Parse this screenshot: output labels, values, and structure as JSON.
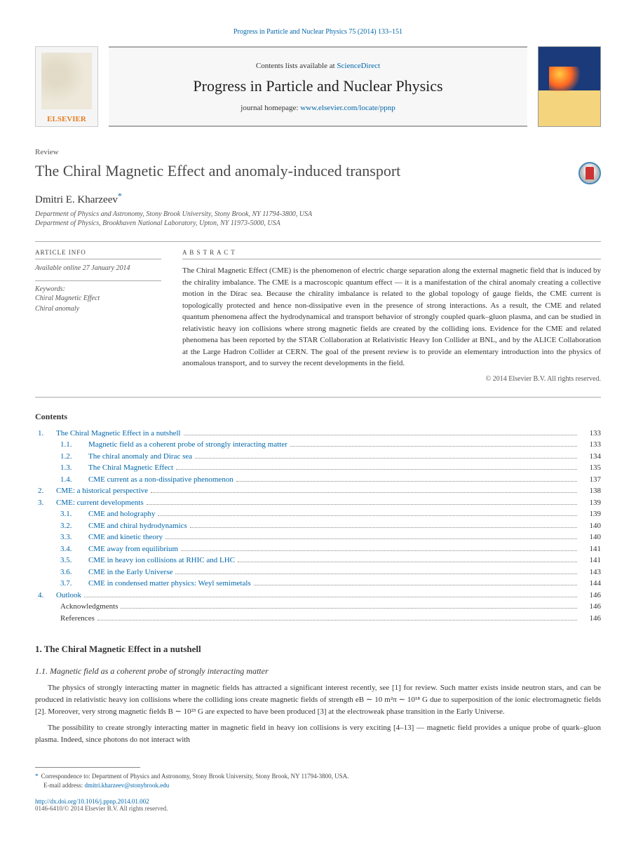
{
  "colors": {
    "link": "#0066aa",
    "text": "#333333",
    "muted": "#555555",
    "rule": "#aaaaaa",
    "elsevier_orange": "#e67e22",
    "cover_blue": "#1a3a7a",
    "cover_yellow": "#f4d47c"
  },
  "typography": {
    "base_fontsize_pt": 9,
    "title_fontsize_pt": 17,
    "journal_name_fontsize_pt": 17
  },
  "citation_top": "Progress in Particle and Nuclear Physics 75 (2014) 133–151",
  "header": {
    "elsevier_label": "ELSEVIER",
    "contents_prefix": "Contents lists available at ",
    "contents_link": "ScienceDirect",
    "journal_name": "Progress in Particle and Nuclear Physics",
    "homepage_prefix": "journal homepage: ",
    "homepage_link": "www.elsevier.com/locate/ppnp"
  },
  "review_label": "Review",
  "paper": {
    "title": "The Chiral Magnetic Effect and anomaly-induced transport",
    "author": "Dmitri E. Kharzeev",
    "star": "*",
    "affiliations": [
      "Department of Physics and Astronomy, Stony Brook University, Stony Brook, NY 11794-3800, USA",
      "Department of Physics, Brookhaven National Laboratory, Upton, NY 11973-5000, USA"
    ]
  },
  "meta": {
    "article_info_head": "ARTICLE INFO",
    "available": "Available online 27 January 2014",
    "keywords_head": "Keywords:",
    "keywords": [
      "Chiral Magnetic Effect",
      "Chiral anomaly"
    ]
  },
  "abstract": {
    "head": "A B S T R A C T",
    "text": "The Chiral Magnetic Effect (CME) is the phenomenon of electric charge separation along the external magnetic field that is induced by the chirality imbalance. The CME is a macroscopic quantum effect — it is a manifestation of the chiral anomaly creating a collective motion in the Dirac sea. Because the chirality imbalance is related to the global topology of gauge fields, the CME current is topologically protected and hence non-dissipative even in the presence of strong interactions. As a result, the CME and related quantum phenomena affect the hydrodynamical and transport behavior of strongly coupled quark–gluon plasma, and can be studied in relativistic heavy ion collisions where strong magnetic fields are created by the colliding ions. Evidence for the CME and related phenomena has been reported by the STAR Collaboration at Relativistic Heavy Ion Collider at BNL, and by the ALICE Collaboration at the Large Hadron Collider at CERN. The goal of the present review is to provide an elementary introduction into the physics of anomalous transport, and to survey the recent developments in the field.",
    "copyright": "© 2014 Elsevier B.V. All rights reserved."
  },
  "contents_head": "Contents",
  "toc": [
    {
      "level": 1,
      "num": "1.",
      "title": "The Chiral Magnetic Effect in a nutshell",
      "page": "133"
    },
    {
      "level": 2,
      "num": "1.1.",
      "title": "Magnetic field as a coherent probe of strongly interacting matter",
      "page": "133"
    },
    {
      "level": 2,
      "num": "1.2.",
      "title": "The chiral anomaly and Dirac sea",
      "page": "134"
    },
    {
      "level": 2,
      "num": "1.3.",
      "title": "The Chiral Magnetic Effect",
      "page": "135"
    },
    {
      "level": 2,
      "num": "1.4.",
      "title": "CME current as a non-dissipative phenomenon",
      "page": "137"
    },
    {
      "level": 1,
      "num": "2.",
      "title": "CME: a historical perspective",
      "page": "138"
    },
    {
      "level": 1,
      "num": "3.",
      "title": "CME: current developments",
      "page": "139"
    },
    {
      "level": 2,
      "num": "3.1.",
      "title": "CME and holography",
      "page": "139"
    },
    {
      "level": 2,
      "num": "3.2.",
      "title": "CME and chiral hydrodynamics",
      "page": "140"
    },
    {
      "level": 2,
      "num": "3.3.",
      "title": "CME and kinetic theory",
      "page": "140"
    },
    {
      "level": 2,
      "num": "3.4.",
      "title": "CME away from equilibrium",
      "page": "141"
    },
    {
      "level": 2,
      "num": "3.5.",
      "title": "CME in heavy ion collisions at RHIC and LHC",
      "page": "141"
    },
    {
      "level": 2,
      "num": "3.6.",
      "title": "CME in the Early Universe",
      "page": "143"
    },
    {
      "level": 2,
      "num": "3.7.",
      "title": "CME in condensed matter physics: Weyl semimetals",
      "page": "144"
    },
    {
      "level": 1,
      "num": "4.",
      "title": "Outlook",
      "page": "146"
    },
    {
      "level": 1,
      "num": "",
      "title": "Acknowledgments",
      "page": "146",
      "nolink": true
    },
    {
      "level": 1,
      "num": "",
      "title": "References",
      "page": "146",
      "nolink": true
    }
  ],
  "section1": {
    "head": "1. The Chiral Magnetic Effect in a nutshell",
    "subhead": "1.1. Magnetic field as a coherent probe of strongly interacting matter",
    "para1": "The physics of strongly interacting matter in magnetic fields has attracted a significant interest recently, see [1] for review. Such matter exists inside neutron stars, and can be produced in relativistic heavy ion collisions where the colliding ions create magnetic fields of strength eB ∼ 10 m²π ∼ 10¹⁸ G due to superposition of the ionic electromagnetic fields [2]. Moreover, very strong magnetic fields B ∼ 10²³ G are expected to have been produced [3] at the electroweak phase transition in the Early Universe.",
    "para2": "The possibility to create strongly interacting matter in magnetic field in heavy ion collisions is very exciting [4–13] — magnetic field provides a unique probe of quark–gluon plasma. Indeed, since photons do not interact with"
  },
  "footnote": {
    "corr": "Correspondence to: Department of Physics and Astronomy, Stony Brook University, Stony Brook, NY 11794-3800, USA.",
    "email_label": "E-mail address:",
    "email": "dmitri.kharzeev@stonybrook.edu"
  },
  "doi": {
    "link": "http://dx.doi.org/10.1016/j.ppnp.2014.01.002",
    "meta": "0146-6410/© 2014 Elsevier B.V. All rights reserved."
  }
}
